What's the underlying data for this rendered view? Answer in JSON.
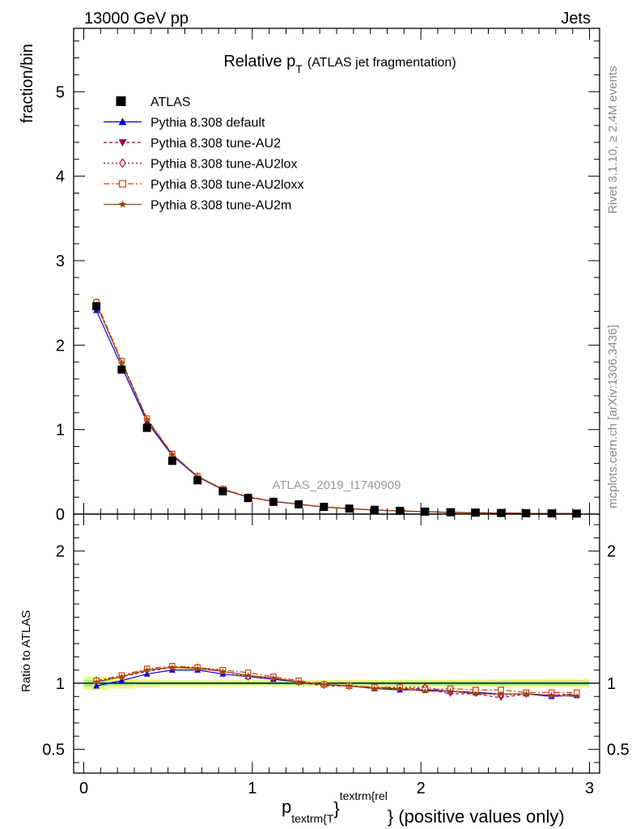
{
  "header": {
    "left": "13000 GeV pp",
    "right": "Jets"
  },
  "side": {
    "rivet": "Rivet 3.1.10, ≥ 2.4M events",
    "mcplots": "mcplots.cern.ch [arXiv:1306.3436]"
  },
  "chart_data": {
    "type": "line",
    "title_main": "Relative p",
    "title_sub": "T",
    "title_rest": "(ATLAS jet fragmentation)",
    "analysis_id": "ATLAS_2019_I1740909",
    "ylabel": "fraction/bin",
    "ratio_ylabel": "Ratio to ATLAS",
    "xlabel_p": "p",
    "xlabel_sub": "textrm{T",
    "xlabel_brace": "}",
    "xlabel_sup": "textrm{rel",
    "xlabel_rest": "} (positive values only)",
    "xlim": [
      -0.06,
      3.06
    ],
    "ylim_main": [
      0,
      5.75
    ],
    "ylim_ratio": [
      0.32,
      2.28
    ],
    "x_ticks": [
      {
        "value": 0,
        "label": "0"
      },
      {
        "value": 1,
        "label": "1"
      },
      {
        "value": 2,
        "label": "2"
      },
      {
        "value": 3,
        "label": "3"
      }
    ],
    "y_ticks_main": [
      {
        "value": 0,
        "label": "0"
      },
      {
        "value": 1,
        "label": "1"
      },
      {
        "value": 2,
        "label": "2"
      },
      {
        "value": 3,
        "label": "3"
      },
      {
        "value": 4,
        "label": "4"
      },
      {
        "value": 5,
        "label": "5"
      }
    ],
    "y_ticks_ratio": [
      {
        "value": 0.5,
        "label": "0.5"
      },
      {
        "value": 1,
        "label": "1"
      },
      {
        "value": 2,
        "label": "2"
      }
    ],
    "x": [
      0.075,
      0.225,
      0.375,
      0.525,
      0.675,
      0.825,
      0.975,
      1.125,
      1.275,
      1.425,
      1.575,
      1.725,
      1.875,
      2.025,
      2.175,
      2.325,
      2.475,
      2.625,
      2.775,
      2.925
    ],
    "data": {
      "name": "ATLAS",
      "values": [
        2.46,
        1.71,
        1.02,
        0.63,
        0.4,
        0.27,
        0.19,
        0.145,
        0.115,
        0.085,
        0.065,
        0.05,
        0.038,
        0.029,
        0.022,
        0.017,
        0.013,
        0.01,
        0.008,
        0.006
      ],
      "band_inner": [
        0.025,
        0.018,
        0.015,
        0.013,
        0.013,
        0.013,
        0.013,
        0.013,
        0.014,
        0.014,
        0.015,
        0.015,
        0.016,
        0.016,
        0.017,
        0.017,
        0.018,
        0.018,
        0.019,
        0.019
      ],
      "band_outer": [
        0.05,
        0.04,
        0.03,
        0.025,
        0.025,
        0.025,
        0.025,
        0.025,
        0.025,
        0.025,
        0.026,
        0.026,
        0.027,
        0.027,
        0.028,
        0.028,
        0.03,
        0.03,
        0.032,
        0.032
      ]
    },
    "series": [
      {
        "name": "Pythia 8.308 default",
        "color": "#0000dd",
        "dash": "",
        "marker": "triangle-up",
        "ratio": [
          0.98,
          1.02,
          1.07,
          1.1,
          1.1,
          1.07,
          1.05,
          1.03,
          1.01,
          0.99,
          0.98,
          0.96,
          0.95,
          0.95,
          0.94,
          0.93,
          0.92,
          0.92,
          0.9,
          0.91
        ]
      },
      {
        "name": "Pythia 8.308 tune-AU2",
        "color": "#990044",
        "dash": "4,3",
        "marker": "triangle-down",
        "ratio": [
          1.01,
          1.05,
          1.09,
          1.12,
          1.12,
          1.09,
          1.06,
          1.04,
          1.01,
          0.98,
          0.98,
          0.97,
          0.96,
          0.96,
          0.92,
          0.92,
          0.89,
          0.92,
          0.91,
          0.92
        ]
      },
      {
        "name": "Pythia 8.308 tune-AU2lox",
        "color": "#aa1133",
        "dash": "2,3",
        "marker": "diamond",
        "ratio": [
          1.02,
          1.05,
          1.1,
          1.12,
          1.12,
          1.09,
          1.05,
          1.04,
          1.01,
          0.99,
          0.98,
          0.97,
          0.97,
          0.97,
          0.94,
          0.93,
          0.91,
          0.92,
          0.91,
          0.92
        ]
      },
      {
        "name": "Pythia 8.308 tune-AU2loxx",
        "color": "#cc4400",
        "dash": "7,3,2,3",
        "marker": "square-open",
        "ratio": [
          1.02,
          1.06,
          1.11,
          1.13,
          1.12,
          1.1,
          1.08,
          1.05,
          1.02,
          0.99,
          0.98,
          0.97,
          0.97,
          0.95,
          0.96,
          0.95,
          0.95,
          0.93,
          0.93,
          0.93
        ]
      },
      {
        "name": "Pythia 8.308 tune-AU2m",
        "color": "#994411",
        "dash": "",
        "marker": "star",
        "ratio": [
          1.01,
          1.05,
          1.1,
          1.12,
          1.11,
          1.09,
          1.06,
          1.04,
          1.01,
          0.99,
          0.98,
          0.96,
          0.96,
          0.94,
          0.94,
          0.92,
          0.92,
          0.92,
          0.91,
          0.9
        ]
      }
    ],
    "legend_placement": "top-left",
    "grid": false
  }
}
